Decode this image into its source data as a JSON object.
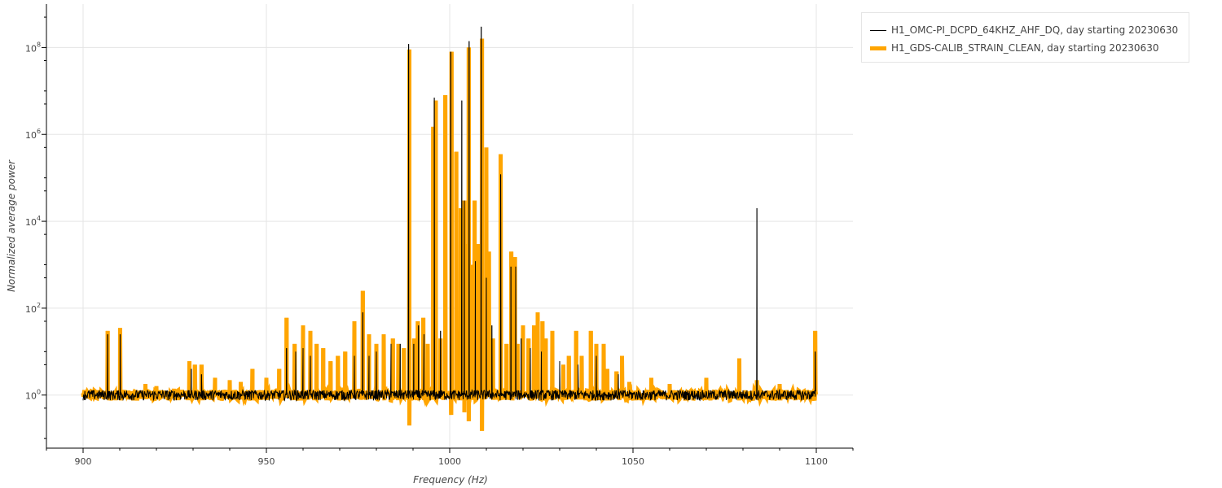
{
  "chart_data": {
    "type": "line",
    "title": "",
    "xlabel": "Frequency (Hz)",
    "ylabel": "Normalized average power",
    "xlim": [
      890,
      1110
    ],
    "ylim": [
      0.06,
      1000000000
    ],
    "yscale": "log",
    "x_ticks": [
      900,
      950,
      1000,
      1050,
      1100
    ],
    "y_ticks": [
      {
        "value": 1,
        "base": "10",
        "exp": "0"
      },
      {
        "value": 100,
        "base": "10",
        "exp": "2"
      },
      {
        "value": 10000,
        "base": "10",
        "exp": "4"
      },
      {
        "value": 1000000,
        "base": "10",
        "exp": "6"
      },
      {
        "value": 100000000,
        "base": "10",
        "exp": "8"
      }
    ],
    "grid": true,
    "legend_position": "outside-top-right",
    "noise_floor": {
      "center": 1.0,
      "low": 0.75,
      "high": 1.3
    },
    "series": [
      {
        "name": "H1_OMC-PI_DCPD_64KHZ_AHF_DQ, day starting 20230630",
        "color": "#000000",
        "width": 1,
        "spikes": [
          {
            "x": 906.7,
            "y": 25
          },
          {
            "x": 910.1,
            "y": 25
          },
          {
            "x": 929.5,
            "y": 4
          },
          {
            "x": 932.3,
            "y": 3
          },
          {
            "x": 955.5,
            "y": 12
          },
          {
            "x": 958.0,
            "y": 10
          },
          {
            "x": 960.0,
            "y": 12
          },
          {
            "x": 962.0,
            "y": 8
          },
          {
            "x": 974.0,
            "y": 8
          },
          {
            "x": 976.3,
            "y": 80
          },
          {
            "x": 978.0,
            "y": 8
          },
          {
            "x": 980.0,
            "y": 10
          },
          {
            "x": 984.0,
            "y": 15
          },
          {
            "x": 986.5,
            "y": 15
          },
          {
            "x": 988.8,
            "y": 120000000
          },
          {
            "x": 990.2,
            "y": 15
          },
          {
            "x": 991.5,
            "y": 40
          },
          {
            "x": 993.0,
            "y": 25
          },
          {
            "x": 995.8,
            "y": 7000000
          },
          {
            "x": 997.5,
            "y": 30
          },
          {
            "x": 1000.3,
            "y": 80000000
          },
          {
            "x": 1003.3,
            "y": 6000000
          },
          {
            "x": 1004.0,
            "y": 30000
          },
          {
            "x": 1005.3,
            "y": 140000000
          },
          {
            "x": 1007.0,
            "y": 1200
          },
          {
            "x": 1008.6,
            "y": 300000000
          },
          {
            "x": 1010.0,
            "y": 500
          },
          {
            "x": 1011.5,
            "y": 40
          },
          {
            "x": 1013.9,
            "y": 120000
          },
          {
            "x": 1016.7,
            "y": 900
          },
          {
            "x": 1018.0,
            "y": 900
          },
          {
            "x": 1019.5,
            "y": 20
          },
          {
            "x": 1022.0,
            "y": 12
          },
          {
            "x": 1025.0,
            "y": 10
          },
          {
            "x": 1030.0,
            "y": 6
          },
          {
            "x": 1035.0,
            "y": 5
          },
          {
            "x": 1040.0,
            "y": 8
          },
          {
            "x": 1046.0,
            "y": 3
          },
          {
            "x": 1083.8,
            "y": 20000
          },
          {
            "x": 1099.7,
            "y": 10
          }
        ]
      },
      {
        "name": "H1_GDS-CALIB_STRAIN_CLEAN, day starting 20230630",
        "color": "#ffa500",
        "width": 5,
        "spikes": [
          {
            "x": 906.7,
            "y": 30
          },
          {
            "x": 910.1,
            "y": 35
          },
          {
            "x": 917.0,
            "y": 1.8
          },
          {
            "x": 920.0,
            "y": 1.6
          },
          {
            "x": 929.0,
            "y": 6
          },
          {
            "x": 930.5,
            "y": 5
          },
          {
            "x": 932.3,
            "y": 5
          },
          {
            "x": 936.0,
            "y": 2.5
          },
          {
            "x": 940.0,
            "y": 2.2
          },
          {
            "x": 943.0,
            "y": 2.0
          },
          {
            "x": 946.2,
            "y": 4
          },
          {
            "x": 950.0,
            "y": 2.5
          },
          {
            "x": 953.5,
            "y": 4
          },
          {
            "x": 955.5,
            "y": 60
          },
          {
            "x": 957.7,
            "y": 15
          },
          {
            "x": 960.0,
            "y": 40
          },
          {
            "x": 962.0,
            "y": 30
          },
          {
            "x": 963.7,
            "y": 15
          },
          {
            "x": 965.5,
            "y": 12
          },
          {
            "x": 967.5,
            "y": 6
          },
          {
            "x": 969.5,
            "y": 8
          },
          {
            "x": 971.5,
            "y": 10
          },
          {
            "x": 974.0,
            "y": 50
          },
          {
            "x": 976.3,
            "y": 250
          },
          {
            "x": 978.0,
            "y": 25
          },
          {
            "x": 980.0,
            "y": 15
          },
          {
            "x": 982.0,
            "y": 25
          },
          {
            "x": 984.5,
            "y": 20
          },
          {
            "x": 986.0,
            "y": 15
          },
          {
            "x": 987.5,
            "y": 12
          },
          {
            "x": 989.0,
            "y": 90000000
          },
          {
            "x": 990.3,
            "y": 20
          },
          {
            "x": 991.3,
            "y": 50
          },
          {
            "x": 992.8,
            "y": 60
          },
          {
            "x": 994.0,
            "y": 15
          },
          {
            "x": 995.5,
            "y": 1500000
          },
          {
            "x": 996.2,
            "y": 6000000
          },
          {
            "x": 997.5,
            "y": 20
          },
          {
            "x": 998.8,
            "y": 8000000
          },
          {
            "x": 1000.5,
            "y": 80000000
          },
          {
            "x": 1001.8,
            "y": 400000
          },
          {
            "x": 1003.0,
            "y": 20000
          },
          {
            "x": 1004.0,
            "y": 30000
          },
          {
            "x": 1004.5,
            "y": 3000
          },
          {
            "x": 1005.2,
            "y": 100000000
          },
          {
            "x": 1006.0,
            "y": 1000
          },
          {
            "x": 1006.8,
            "y": 30000
          },
          {
            "x": 1007.7,
            "y": 3000
          },
          {
            "x": 1008.8,
            "y": 160000000
          },
          {
            "x": 1010.0,
            "y": 500000
          },
          {
            "x": 1010.7,
            "y": 2000
          },
          {
            "x": 1011.8,
            "y": 20
          },
          {
            "x": 1013.9,
            "y": 350000
          },
          {
            "x": 1015.5,
            "y": 15
          },
          {
            "x": 1016.8,
            "y": 2000
          },
          {
            "x": 1017.8,
            "y": 1500
          },
          {
            "x": 1018.5,
            "y": 15
          },
          {
            "x": 1020.0,
            "y": 40
          },
          {
            "x": 1021.5,
            "y": 20
          },
          {
            "x": 1023.0,
            "y": 40
          },
          {
            "x": 1024.0,
            "y": 80
          },
          {
            "x": 1025.3,
            "y": 50
          },
          {
            "x": 1026.2,
            "y": 20
          },
          {
            "x": 1028.0,
            "y": 30
          },
          {
            "x": 1031.0,
            "y": 5
          },
          {
            "x": 1032.5,
            "y": 8
          },
          {
            "x": 1034.5,
            "y": 30
          },
          {
            "x": 1036.0,
            "y": 8
          },
          {
            "x": 1038.5,
            "y": 30
          },
          {
            "x": 1040.0,
            "y": 15
          },
          {
            "x": 1042.0,
            "y": 15
          },
          {
            "x": 1043.0,
            "y": 4
          },
          {
            "x": 1045.5,
            "y": 3.5
          },
          {
            "x": 1047.0,
            "y": 8
          },
          {
            "x": 1049.0,
            "y": 2
          },
          {
            "x": 1055.0,
            "y": 2.5
          },
          {
            "x": 1060.0,
            "y": 1.8
          },
          {
            "x": 1070.0,
            "y": 2.5
          },
          {
            "x": 1079.0,
            "y": 7
          },
          {
            "x": 1083.8,
            "y": 2.2
          },
          {
            "x": 1090.0,
            "y": 1.8
          },
          {
            "x": 1099.7,
            "y": 30
          }
        ],
        "dips": [
          {
            "x": 989.0,
            "y": 0.2
          },
          {
            "x": 1000.4,
            "y": 0.35
          },
          {
            "x": 1005.2,
            "y": 0.25
          },
          {
            "x": 1008.8,
            "y": 0.15
          },
          {
            "x": 1004.0,
            "y": 0.4
          }
        ]
      }
    ]
  }
}
